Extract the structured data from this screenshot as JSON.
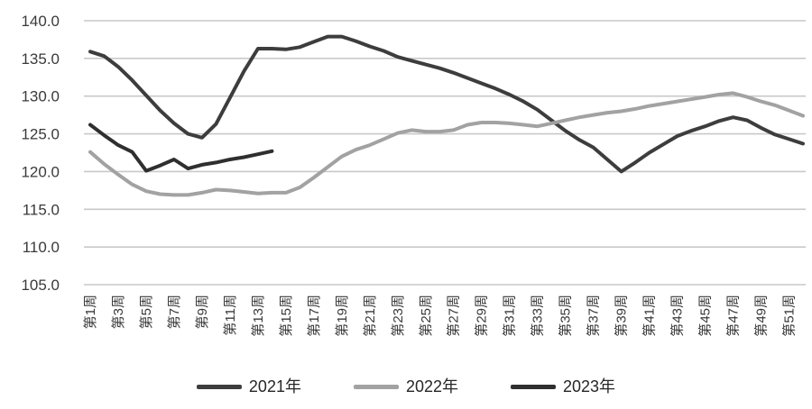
{
  "chart_data": {
    "type": "line",
    "title": "",
    "xlabel": "",
    "ylabel": "",
    "x_tick_labels": [
      "第1周",
      "第3周",
      "第5周",
      "第7周",
      "第9周",
      "第11周",
      "第13周",
      "第15周",
      "第17周",
      "第19周",
      "第21周",
      "第23周",
      "第25周",
      "第27周",
      "第29周",
      "第31周",
      "第33周",
      "第35周",
      "第37周",
      "第39周",
      "第41周",
      "第43周",
      "第45周",
      "第47周",
      "第49周",
      "第51周"
    ],
    "x_weeks_total": 52,
    "ylim": [
      105,
      140
    ],
    "ytick_step": 5,
    "ytick_labels_top_to_bottom": [
      "140.0",
      "135.0",
      "130.0",
      "125.0",
      "120.0",
      "115.0",
      "110.0",
      "105.0"
    ],
    "grid": "horizontal",
    "legend_position": "bottom",
    "series": [
      {
        "name": "2021年",
        "color": "#3d3d3d",
        "start_week": 1,
        "values": [
          135.9,
          135.3,
          133.9,
          132.1,
          130.1,
          128.1,
          126.4,
          125.0,
          124.5,
          126.3,
          129.8,
          133.3,
          136.3,
          136.3,
          136.2,
          136.5,
          137.2,
          137.9,
          137.9,
          137.3,
          136.6,
          136.0,
          135.2,
          134.7,
          134.2,
          133.7,
          133.1,
          132.4,
          131.7,
          131.0,
          130.2,
          129.3,
          128.2,
          126.8,
          125.4,
          124.2,
          123.2,
          121.6,
          120.0,
          121.2,
          122.5,
          123.6,
          124.7,
          125.4,
          126.0,
          126.7,
          127.2,
          126.8,
          125.8,
          124.9,
          124.3,
          123.7
        ]
      },
      {
        "name": "2022年",
        "color": "#a2a2a2",
        "start_week": 1,
        "values": [
          122.6,
          121.0,
          119.6,
          118.3,
          117.4,
          117.0,
          116.9,
          116.9,
          117.2,
          117.6,
          117.5,
          117.3,
          117.1,
          117.2,
          117.2,
          117.9,
          119.2,
          120.6,
          122.0,
          122.9,
          123.5,
          124.3,
          125.1,
          125.5,
          125.3,
          125.3,
          125.5,
          126.2,
          126.5,
          126.5,
          126.4,
          126.2,
          126.0,
          126.4,
          126.8,
          127.2,
          127.5,
          127.8,
          128.0,
          128.3,
          128.7,
          129.0,
          129.3,
          129.6,
          129.9,
          130.2,
          130.4,
          129.9,
          129.3,
          128.8,
          128.1,
          127.4
        ]
      },
      {
        "name": "2023年",
        "color": "#2f2f2f",
        "start_week": 1,
        "values": [
          126.2,
          124.8,
          123.5,
          122.6,
          120.1,
          120.8,
          121.6,
          120.4,
          120.9,
          121.2,
          121.6,
          121.9,
          122.3,
          122.7
        ]
      }
    ]
  },
  "colors": {
    "gridline": "#c9c9c9",
    "axis_text": "#3a3a3a",
    "background": "#ffffff"
  }
}
